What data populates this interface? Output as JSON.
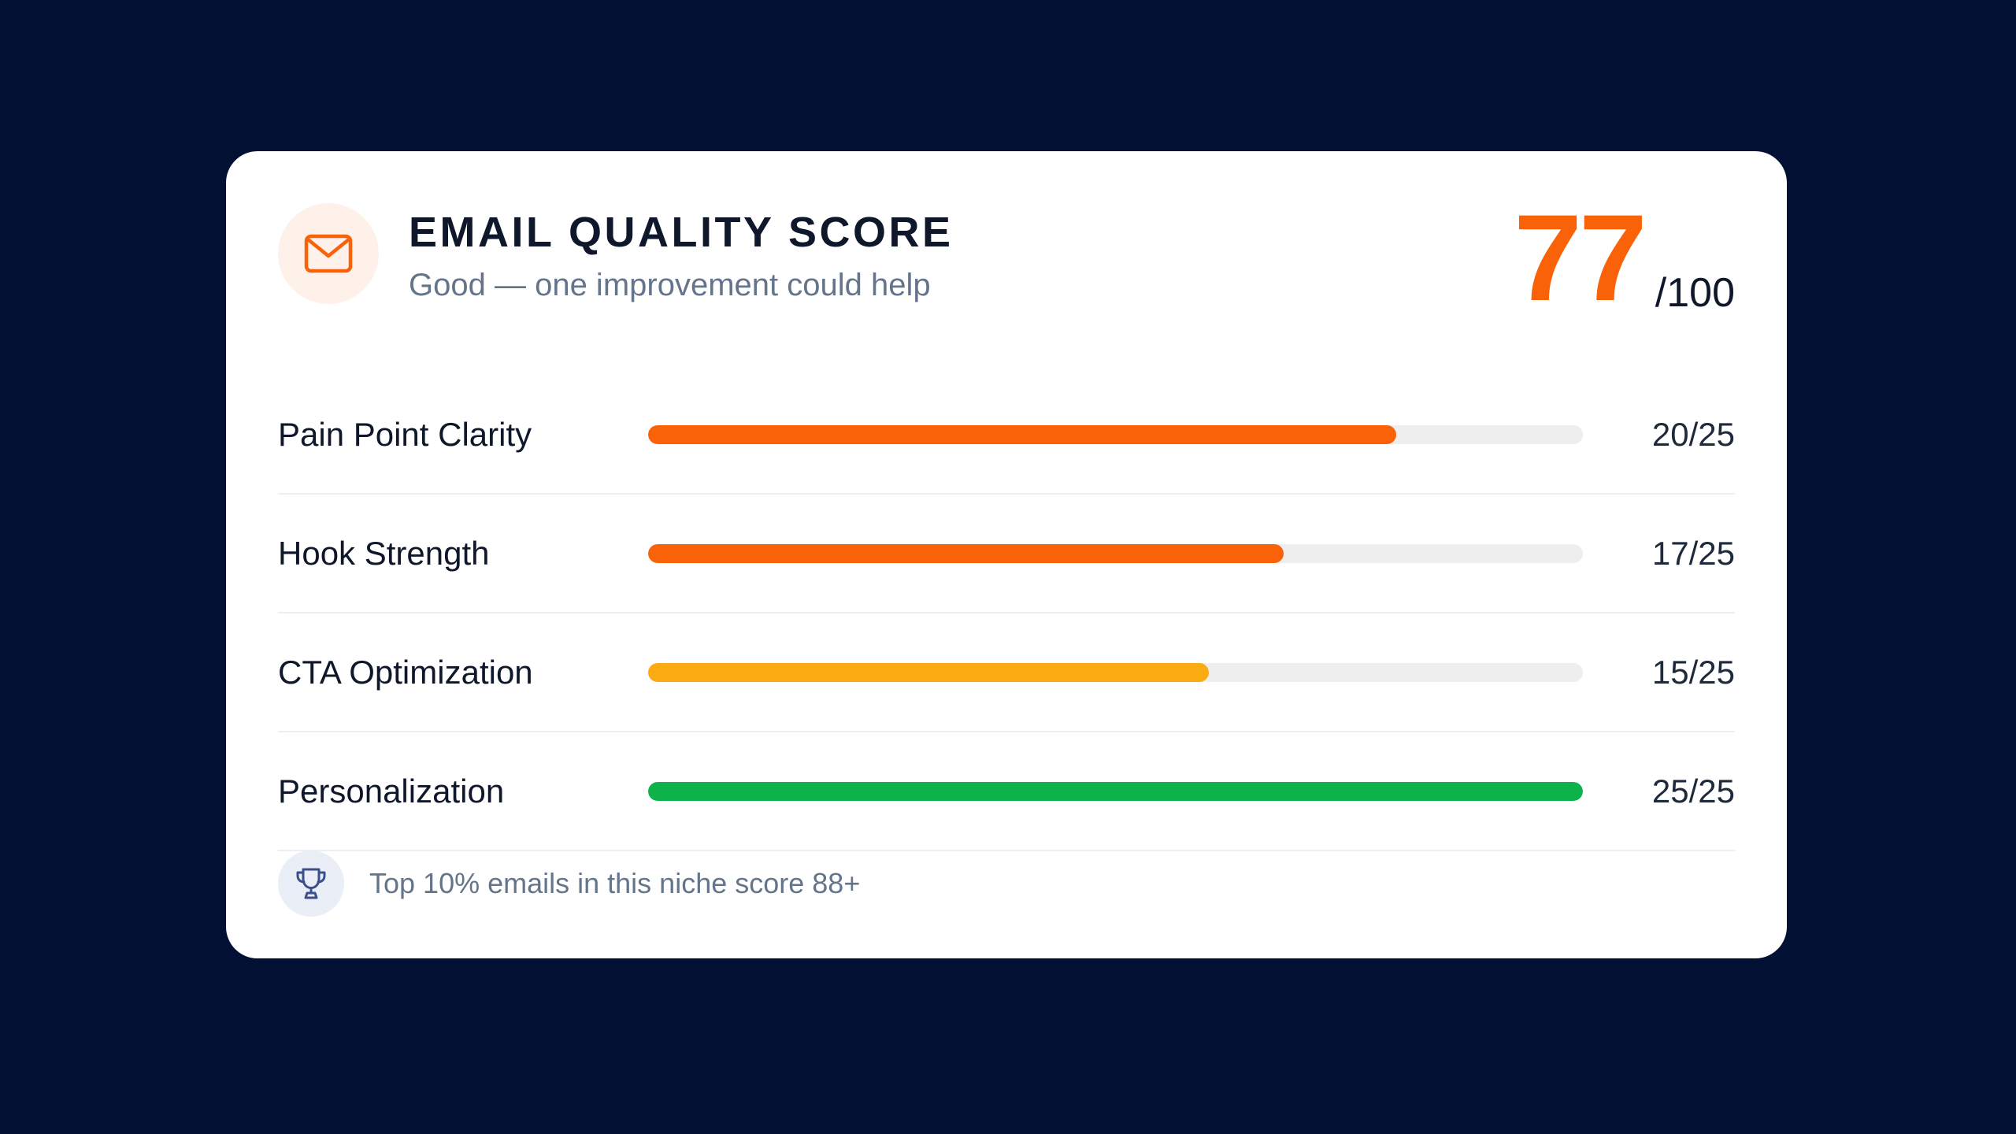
{
  "header": {
    "icon": "envelope-icon",
    "title": "EMAIL QUALITY SCORE",
    "subtitle": "Good — one improvement could help"
  },
  "score": {
    "value": "77",
    "max": "/100",
    "color": "#fa620a"
  },
  "metrics": [
    {
      "label": "Pain Point Clarity",
      "score": 20,
      "max": 25,
      "display": "20/25",
      "color": "#fa620a"
    },
    {
      "label": "Hook Strength",
      "score": 17,
      "max": 25,
      "display": "17/25",
      "color": "#fa620a"
    },
    {
      "label": "CTA Optimization",
      "score": 15,
      "max": 25,
      "display": "15/25",
      "color": "#fbab12"
    },
    {
      "label": "Personalization",
      "score": 25,
      "max": 25,
      "display": "25/25",
      "color": "#0eb24a"
    }
  ],
  "footer": {
    "icon": "trophy-icon",
    "text": "Top 10% emails in this niche score  88+"
  }
}
